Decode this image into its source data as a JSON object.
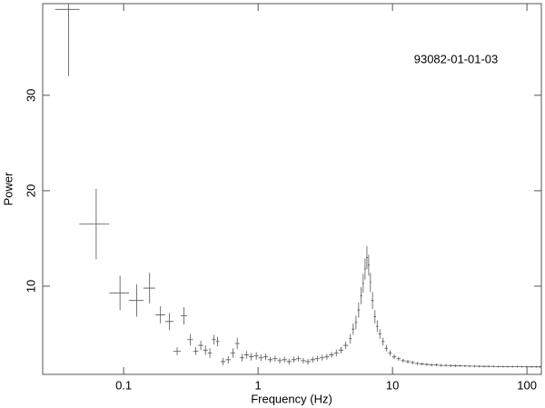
{
  "chart_data": {
    "type": "errorbar",
    "annotation": "93082-01-01-03",
    "xlabel": "Frequency (Hz)",
    "ylabel": "Power",
    "log_x": true,
    "color": "#555555",
    "xlim": [
      0.025,
      128
    ],
    "ylim": [
      0.76,
      39.6
    ],
    "xticks": [
      0.1,
      1,
      10,
      100
    ],
    "yticks": [
      10,
      20,
      30
    ],
    "x": [
      0.039,
      0.0625,
      0.094,
      0.125,
      0.156,
      0.188,
      0.219,
      0.25,
      0.281,
      0.313,
      0.344,
      0.375,
      0.406,
      0.438,
      0.469,
      0.5,
      0.55,
      0.6,
      0.65,
      0.7,
      0.76,
      0.82,
      0.89,
      0.97,
      1.05,
      1.14,
      1.23,
      1.34,
      1.45,
      1.57,
      1.7,
      1.85,
      2.0,
      2.17,
      2.35,
      2.55,
      2.76,
      3.0,
      3.25,
      3.52,
      3.82,
      4.14,
      4.49,
      4.86,
      5.1,
      5.35,
      5.6,
      5.85,
      6.05,
      6.25,
      6.45,
      6.65,
      6.85,
      7.1,
      7.4,
      7.7,
      8.05,
      8.5,
      9.0,
      9.6,
      10.3,
      11.1,
      12.0,
      13.0,
      14.1,
      15.3,
      16.6,
      18.0,
      19.5,
      21.2,
      23,
      25,
      27.1,
      29.4,
      31.9,
      34.6,
      37.5,
      40.7,
      44.2,
      48,
      52,
      56.4,
      61.2,
      66.4,
      72,
      78.1,
      84.7,
      91.9,
      99.7,
      108,
      117,
      125
    ],
    "xerr": [
      0.008,
      0.0156,
      0.0156,
      0.0156,
      0.0156,
      0.0156,
      0.0156,
      0.0156,
      0.0156,
      0.0156,
      0.0156,
      0.0156,
      0.0156,
      0.0156,
      0.0156,
      0.0156,
      0.023,
      0.025,
      0.027,
      0.029,
      0.032,
      0.034,
      0.037,
      0.04,
      0.044,
      0.047,
      0.051,
      0.056,
      0.06,
      0.065,
      0.07,
      0.077,
      0.083,
      0.09,
      0.098,
      0.11,
      0.11,
      0.12,
      0.13,
      0.15,
      0.16,
      0.17,
      0.19,
      0.12,
      0.12,
      0.12,
      0.12,
      0.1,
      0.1,
      0.1,
      0.1,
      0.1,
      0.1,
      0.15,
      0.15,
      0.15,
      0.2,
      0.22,
      0.25,
      0.3,
      0.35,
      0.4,
      0.45,
      0.5,
      0.55,
      0.6,
      0.65,
      0.7,
      0.8,
      0.85,
      0.95,
      1.0,
      1.1,
      1.2,
      1.3,
      1.4,
      1.5,
      1.7,
      1.8,
      2.0,
      2.1,
      2.3,
      2.5,
      2.7,
      3.0,
      3.2,
      3.5,
      3.8,
      4.1,
      4.5,
      4.8,
      3.5
    ],
    "values": [
      39,
      16.5,
      9.3,
      8.5,
      9.8,
      7.0,
      6.3,
      3.2,
      6.9,
      4.4,
      3.2,
      3.8,
      3.3,
      3.0,
      4.4,
      4.2,
      2.1,
      2.3,
      3.0,
      4.0,
      2.5,
      2.8,
      2.6,
      2.7,
      2.5,
      2.6,
      2.3,
      2.4,
      2.2,
      2.3,
      2.1,
      2.3,
      2.4,
      2.2,
      2.1,
      2.3,
      2.4,
      2.5,
      2.6,
      2.8,
      3.0,
      3.3,
      3.8,
      4.5,
      5.5,
      6.2,
      7.5,
      9.0,
      10.3,
      11.8,
      13.0,
      12.2,
      10.4,
      8.5,
      6.8,
      5.8,
      5.0,
      4.2,
      3.5,
      3.0,
      2.6,
      2.4,
      2.2,
      2.1,
      2.0,
      1.9,
      1.85,
      1.8,
      1.75,
      1.75,
      1.7,
      1.7,
      1.68,
      1.66,
      1.65,
      1.64,
      1.63,
      1.62,
      1.61,
      1.6,
      1.6,
      1.59,
      1.58,
      1.58,
      1.57,
      1.57,
      1.56,
      1.56,
      1.55,
      1.55,
      1.55,
      1.55
    ],
    "yerr": [
      7,
      3.7,
      1.8,
      1.7,
      1.6,
      0.9,
      0.9,
      0.4,
      0.9,
      0.6,
      0.4,
      0.5,
      0.5,
      0.5,
      0.5,
      0.5,
      0.4,
      0.4,
      0.5,
      0.6,
      0.4,
      0.4,
      0.4,
      0.4,
      0.35,
      0.35,
      0.3,
      0.3,
      0.3,
      0.3,
      0.3,
      0.3,
      0.3,
      0.3,
      0.3,
      0.3,
      0.3,
      0.3,
      0.3,
      0.3,
      0.35,
      0.35,
      0.4,
      0.5,
      0.6,
      0.7,
      0.8,
      0.9,
      1.0,
      1.1,
      1.2,
      1.1,
      1.0,
      0.9,
      0.7,
      0.6,
      0.5,
      0.4,
      0.35,
      0.3,
      0.25,
      0.2,
      0.2,
      0.2,
      0.18,
      0.17,
      0.16,
      0.15,
      0.15,
      0.15,
      0.14,
      0.14,
      0.13,
      0.13,
      0.12,
      0.12,
      0.12,
      0.11,
      0.11,
      0.1,
      0.1,
      0.1,
      0.1,
      0.1,
      0.1,
      0.1,
      0.1,
      0.1,
      0.1,
      0.1,
      0.1,
      0.1
    ]
  }
}
